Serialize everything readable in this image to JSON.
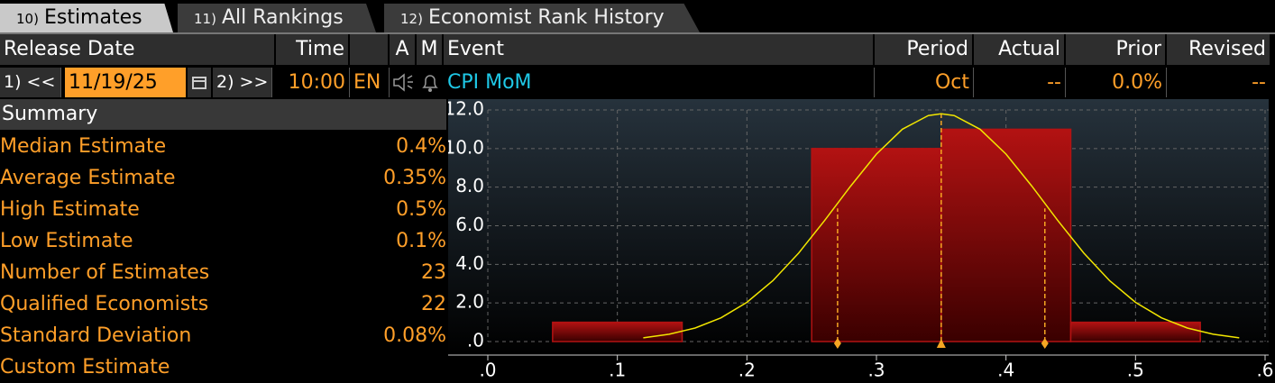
{
  "tabs": [
    {
      "number": "10)",
      "label": "Estimates"
    },
    {
      "number": "11)",
      "label": "All Rankings"
    },
    {
      "number": "12)",
      "label": "Economist Rank History"
    }
  ],
  "table": {
    "headers": [
      "Release Date",
      "Time",
      "A",
      "M",
      "Event",
      "Period",
      "Actual",
      "Prior",
      "Revised"
    ],
    "controls": {
      "back": "1) <<",
      "forward": "2) >>"
    },
    "row": {
      "date": "11/19/25",
      "time": "10:00",
      "region": "EN",
      "event": "CPI MoM",
      "period": "Oct",
      "actual": "--",
      "prior": "0.0%",
      "revised": "--"
    }
  },
  "summary": {
    "title": "Summary",
    "rows": [
      [
        "Median Estimate",
        "0.4%"
      ],
      [
        "Average Estimate",
        "0.35%"
      ],
      [
        "High Estimate",
        "0.5%"
      ],
      [
        "Low Estimate",
        "0.1%"
      ],
      [
        "Number of Estimates",
        "23"
      ],
      [
        "Qualified Economists",
        "22"
      ],
      [
        "Standard Deviation",
        "0.08%"
      ],
      [
        "Custom Estimate",
        ""
      ]
    ]
  },
  "chart_data": {
    "type": "histogram",
    "bins": [
      0.05,
      0.15,
      0.25,
      0.35,
      0.45,
      0.55
    ],
    "counts": [
      1,
      0,
      10,
      11,
      1
    ],
    "color": "#b31212",
    "xlim": [
      0,
      0.6
    ],
    "xticks": [
      {
        "value": 0,
        "label": ".0"
      },
      {
        "value": 0.1,
        "label": ".1"
      },
      {
        "value": 0.2,
        "label": ".2"
      },
      {
        "value": 0.3,
        "label": ".3"
      },
      {
        "value": 0.4,
        "label": ".4"
      },
      {
        "value": 0.5,
        "label": ".5"
      },
      {
        "value": 0.6,
        "label": ".6"
      }
    ],
    "ylim": [
      0,
      12
    ],
    "yticks": [
      {
        "value": 0,
        "label": ".0"
      },
      {
        "value": 2,
        "label": "2.0"
      },
      {
        "value": 4,
        "label": "4.0"
      },
      {
        "value": 6,
        "label": "6.0"
      },
      {
        "value": 8,
        "label": "8.0"
      },
      {
        "value": 10,
        "label": "10.0"
      },
      {
        "value": 12,
        "label": "12.0"
      }
    ],
    "grid": true,
    "curve": {
      "color": "#f2e600",
      "x": [
        0.12,
        0.14,
        0.16,
        0.18,
        0.2,
        0.22,
        0.24,
        0.26,
        0.28,
        0.3,
        0.32,
        0.34,
        0.35,
        0.36,
        0.38,
        0.4,
        0.42,
        0.44,
        0.46,
        0.48,
        0.5,
        0.52,
        0.54,
        0.56,
        0.58
      ],
      "values": [
        0.19,
        0.38,
        0.7,
        1.23,
        2.03,
        3.15,
        4.59,
        6.27,
        8.05,
        9.71,
        11.0,
        11.71,
        11.8,
        11.71,
        11.0,
        9.71,
        8.05,
        6.27,
        4.59,
        3.15,
        2.03,
        1.23,
        0.7,
        0.38,
        0.19
      ]
    },
    "markers": {
      "color": "#f5a623",
      "x": [
        0.27,
        0.35,
        0.43
      ],
      "values": [
        6.9,
        11.8,
        6.9
      ]
    }
  }
}
